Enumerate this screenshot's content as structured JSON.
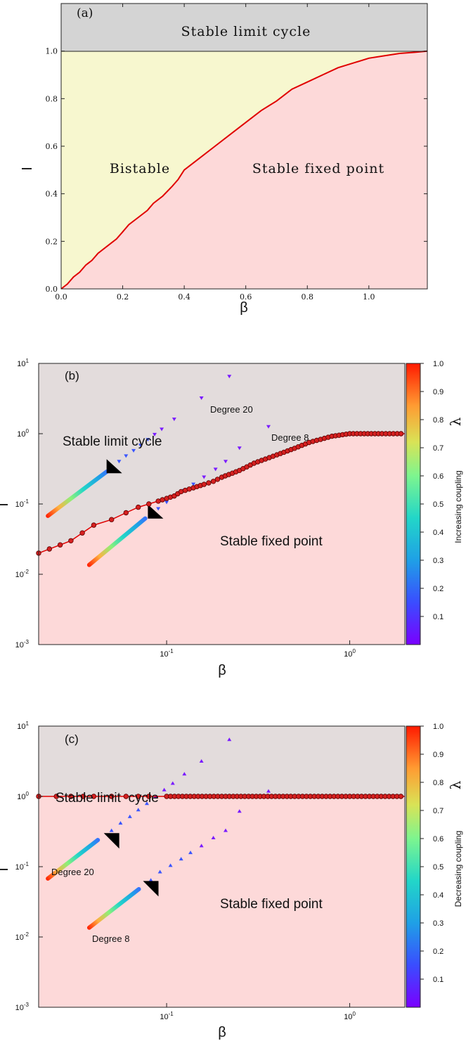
{
  "chart_data": [
    {
      "type": "area",
      "panel_label": "(a)",
      "xlabel": "β",
      "ylabel": "I",
      "xlim": [
        0,
        1.19
      ],
      "ylim": [
        0,
        1.2
      ],
      "x_ticks": [
        "0.0",
        "0.2",
        "0.4",
        "0.6",
        "0.8",
        "1.0"
      ],
      "y_ticks": [
        "0.0",
        "0.2",
        "0.4",
        "0.6",
        "0.8",
        "1.0"
      ],
      "regions": [
        "Stable limit cycle",
        "Bistable",
        "Stable fixed point"
      ],
      "boundary_x": [
        0,
        0.02,
        0.04,
        0.06,
        0.08,
        0.1,
        0.12,
        0.15,
        0.18,
        0.2,
        0.22,
        0.25,
        0.28,
        0.3,
        0.33,
        0.36,
        0.38,
        0.4,
        0.45,
        0.5,
        0.55,
        0.6,
        0.65,
        0.7,
        0.75,
        0.8,
        0.85,
        0.9,
        0.95,
        1.0,
        1.05,
        1.1,
        1.15,
        1.19
      ],
      "boundary_y": [
        0,
        0.02,
        0.05,
        0.07,
        0.1,
        0.12,
        0.15,
        0.18,
        0.21,
        0.24,
        0.27,
        0.3,
        0.33,
        0.36,
        0.39,
        0.43,
        0.46,
        0.5,
        0.55,
        0.6,
        0.65,
        0.7,
        0.75,
        0.79,
        0.84,
        0.87,
        0.9,
        0.93,
        0.95,
        0.97,
        0.98,
        0.99,
        0.995,
        1.0
      ],
      "colors": {
        "limit_cycle": "#d4d4d4",
        "bistable": "#f7f7cf",
        "fixed_point": "#fdd9d9",
        "boundary": "#e00000"
      }
    },
    {
      "type": "scatter",
      "panel_label": "(b)",
      "xlabel": "β",
      "ylabel": "I",
      "x_scale": "log",
      "y_scale": "log",
      "xlim": [
        0.02,
        2
      ],
      "ylim": [
        0.001,
        10
      ],
      "x_ticks": [
        {
          "base": "10",
          "exp": "-1",
          "value": 0.1
        },
        {
          "base": "10",
          "exp": "0",
          "value": 1
        }
      ],
      "y_ticks": [
        {
          "base": "10",
          "exp": "-3",
          "value": 0.001
        },
        {
          "base": "10",
          "exp": "-2",
          "value": 0.01
        },
        {
          "base": "10",
          "exp": "-1",
          "value": 0.1
        },
        {
          "base": "10",
          "exp": "0",
          "value": 1
        },
        {
          "base": "10",
          "exp": "1",
          "value": 10
        }
      ],
      "region_labels": [
        "Stable limit cycle",
        "Stable fixed point"
      ],
      "series_labels": [
        "Degree 20",
        "Degree 8"
      ],
      "colorbar": {
        "label": "λ",
        "sublabel": "Increasing coupling",
        "ticks": [
          "1.0",
          "0.9",
          "0.8",
          "0.7",
          "0.6",
          "0.5",
          "0.4",
          "0.3",
          "0.2",
          "0.1"
        ]
      },
      "boundary_x": [
        0.02,
        0.03,
        0.04,
        0.05,
        0.06,
        0.07,
        0.08,
        0.09,
        0.1,
        0.11,
        0.12,
        0.14,
        0.16,
        0.18,
        0.2,
        0.25,
        0.3,
        0.4,
        0.5,
        0.6,
        0.8,
        1.0,
        1.2,
        1.5,
        2.0
      ],
      "boundary_y": [
        0.02,
        0.03,
        0.05,
        0.06,
        0.075,
        0.09,
        0.1,
        0.11,
        0.12,
        0.13,
        0.15,
        0.17,
        0.19,
        0.21,
        0.24,
        0.3,
        0.38,
        0.5,
        0.62,
        0.75,
        0.92,
        1.0,
        1.0,
        1.0,
        1.0
      ],
      "series": [
        {
          "name": "Degree 20",
          "x_start": 0.022,
          "y_start": 0.065,
          "x_end": 0.048,
          "y_end": 0.3,
          "marker_x": [
            0.055,
            0.06,
            0.066,
            0.072,
            0.079,
            0.086,
            0.094,
            0.11,
            0.155,
            0.22
          ],
          "marker_y": [
            0.4,
            0.48,
            0.57,
            0.68,
            0.82,
            0.97,
            1.15,
            1.6,
            3.2,
            6.5
          ]
        },
        {
          "name": "Degree 8",
          "x_start": 0.037,
          "y_start": 0.013,
          "x_end": 0.078,
          "y_end": 0.065,
          "marker_x": [
            0.09,
            0.1,
            0.11,
            0.125,
            0.14,
            0.16,
            0.185,
            0.21,
            0.25,
            0.36
          ],
          "marker_y": [
            0.085,
            0.105,
            0.125,
            0.155,
            0.19,
            0.24,
            0.31,
            0.4,
            0.62,
            1.25
          ]
        }
      ],
      "arrows": [
        {
          "x": 0.047,
          "y": 0.3,
          "direction": "up"
        },
        {
          "x": 0.079,
          "y": 0.068,
          "direction": "up"
        }
      ],
      "colors": {
        "limit_cycle": "#e3dcdc",
        "fixed_point": "#fdd9d9",
        "boundary": "#e00000"
      }
    },
    {
      "type": "scatter",
      "panel_label": "(c)",
      "xlabel": "β",
      "ylabel": "I",
      "x_scale": "log",
      "y_scale": "log",
      "xlim": [
        0.02,
        2
      ],
      "ylim": [
        0.001,
        10
      ],
      "x_ticks": [
        {
          "base": "10",
          "exp": "-1",
          "value": 0.1
        },
        {
          "base": "10",
          "exp": "0",
          "value": 1
        }
      ],
      "y_ticks": [
        {
          "base": "10",
          "exp": "-3",
          "value": 0.001
        },
        {
          "base": "10",
          "exp": "-2",
          "value": 0.01
        },
        {
          "base": "10",
          "exp": "-1",
          "value": 0.1
        },
        {
          "base": "10",
          "exp": "0",
          "value": 1
        },
        {
          "base": "10",
          "exp": "1",
          "value": 10
        }
      ],
      "region_labels": [
        "Stable limit  cycle",
        "Stable fixed point"
      ],
      "series_labels": [
        "Degree 20",
        "Degree 8"
      ],
      "colorbar": {
        "label": "λ",
        "sublabel": "Decreasing coupling",
        "ticks": [
          "1.0",
          "0.9",
          "0.8",
          "0.7",
          "0.6",
          "0.5",
          "0.4",
          "0.3",
          "0.2",
          "0.1"
        ]
      },
      "boundary_x": [
        0.02,
        0.025,
        0.03,
        0.035,
        0.04,
        0.05,
        0.06,
        0.07,
        0.08,
        0.1,
        0.2,
        0.5,
        1.0,
        2.0
      ],
      "boundary_y": [
        1.0,
        1.0,
        1.0,
        1.0,
        1.0,
        1.0,
        1.0,
        1.0,
        1.0,
        1.0,
        1.0,
        1.0,
        1.0,
        1.0
      ],
      "series": [
        {
          "name": "Degree 20",
          "x_start": 0.022,
          "y_start": 0.065,
          "x_end": 0.043,
          "y_end": 0.25,
          "marker_x": [
            0.05,
            0.056,
            0.063,
            0.07,
            0.078,
            0.087,
            0.097,
            0.108,
            0.125,
            0.155,
            0.22
          ],
          "marker_y": [
            0.33,
            0.42,
            0.52,
            0.65,
            0.8,
            1.0,
            1.25,
            1.55,
            2.1,
            3.2,
            6.5
          ]
        },
        {
          "name": "Degree 8",
          "x_start": 0.037,
          "y_start": 0.013,
          "x_end": 0.072,
          "y_end": 0.05,
          "marker_x": [
            0.082,
            0.092,
            0.105,
            0.12,
            0.135,
            0.155,
            0.18,
            0.21,
            0.25,
            0.36
          ],
          "marker_y": [
            0.065,
            0.085,
            0.105,
            0.13,
            0.16,
            0.2,
            0.26,
            0.33,
            0.62,
            1.2
          ]
        }
      ],
      "arrows": [
        {
          "x": 0.047,
          "y": 0.25,
          "direction": "down"
        },
        {
          "x": 0.077,
          "y": 0.052,
          "direction": "down"
        }
      ],
      "colors": {
        "limit_cycle": "#e3dcdc",
        "fixed_point": "#fdd9d9",
        "boundary": "#e00000"
      }
    }
  ]
}
